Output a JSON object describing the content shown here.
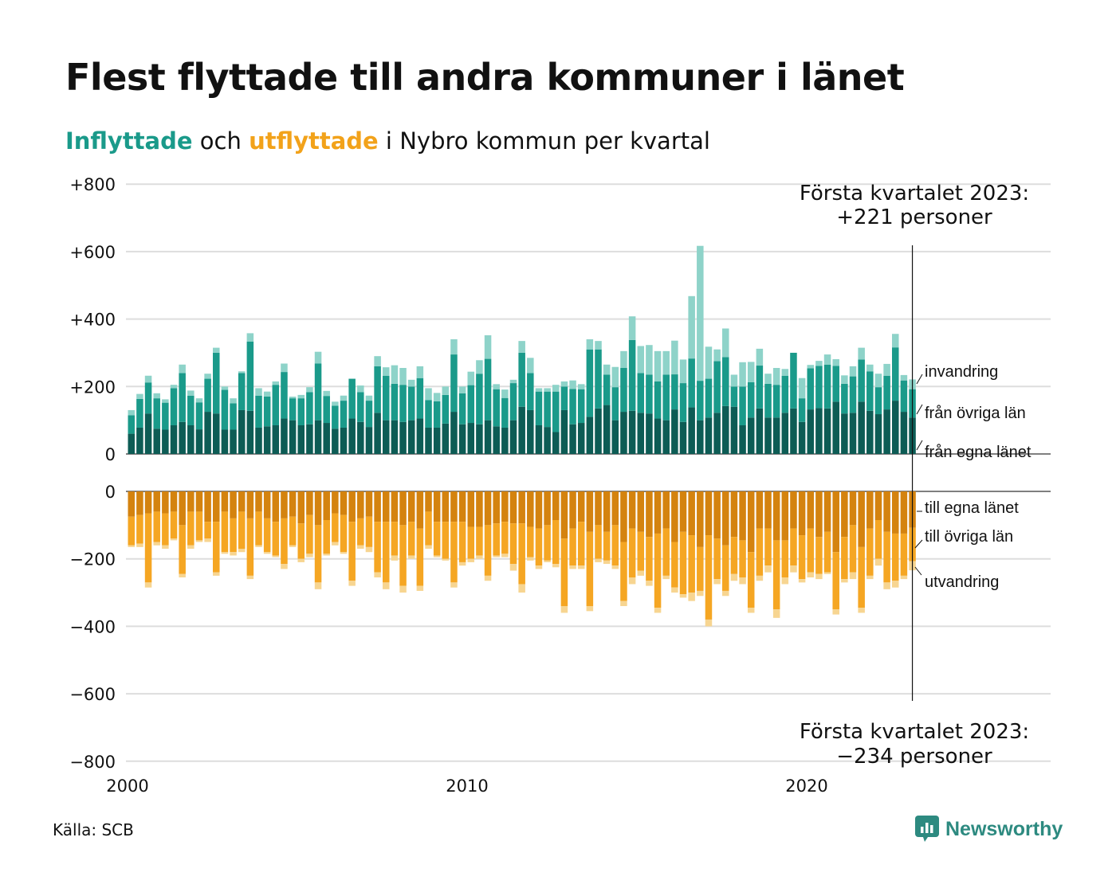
{
  "title": "Flest flyttade till andra kommuner i länet",
  "subtitle": {
    "part1": "Inflyttade",
    "part2": " och ",
    "part3": "utflyttade",
    "part4": " i Nybro kommun per kvartal"
  },
  "source": "Källa: SCB",
  "brand": "Newsworthy",
  "colors": {
    "in_own": "#0d5c55",
    "in_other": "#1a9a8a",
    "in_immig": "#8ed3c9",
    "out_own": "#d4830f",
    "out_other": "#f5a623",
    "out_emig": "#f7d591",
    "subtitle_in": "#1a9a8a",
    "subtitle_out": "#f2a21a",
    "grid": "#dddddd"
  },
  "annotations": {
    "top_line1": "Första kvartalet 2023:",
    "top_line2": "+221 personer",
    "bottom_line1": "Första kvartalet 2023:",
    "bottom_line2": "−234 personer"
  },
  "chart_data": {
    "type": "bar",
    "stacked": true,
    "x_unit": "quarter",
    "x_start": "2000 Q1",
    "x_end": "2023 Q1",
    "xlim": [
      2000,
      2027.25
    ],
    "ylim": [
      -800,
      800
    ],
    "x_ticks": [
      "2000",
      "2010",
      "2020"
    ],
    "x_tick_values": [
      2000,
      2010,
      2020
    ],
    "y_ticks_top": [
      "+800",
      "+600",
      "+400",
      "+200",
      "0"
    ],
    "y_tick_values_top": [
      800,
      600,
      400,
      200,
      0
    ],
    "y_ticks_bottom": [
      "0",
      "−200",
      "−400",
      "−600",
      "−800"
    ],
    "y_tick_values_bottom": [
      0,
      -200,
      -400,
      -600,
      -800
    ],
    "grid": true,
    "series_in": [
      {
        "name": "från egna länet",
        "values": [
          60,
          78,
          120,
          75,
          72,
          85,
          95,
          85,
          73,
          125,
          120,
          72,
          72,
          130,
          128,
          78,
          82,
          85,
          105,
          100,
          85,
          88,
          100,
          92,
          75,
          78,
          105,
          95,
          80,
          122,
          100,
          100,
          95,
          100,
          105,
          78,
          78,
          90,
          125,
          88,
          92,
          88,
          100,
          82,
          78,
          100,
          140,
          130,
          85,
          80,
          65,
          130,
          88,
          92,
          110,
          135,
          145,
          100,
          125,
          128,
          122,
          120,
          105,
          100,
          132,
          95,
          138,
          100,
          108,
          122,
          142,
          140,
          85,
          108,
          135,
          108,
          108,
          122,
          135,
          95,
          132,
          136,
          135,
          155,
          120,
          122,
          155,
          128,
          118,
          132,
          158,
          125,
          108
        ]
      },
      {
        "name": "från övriga län",
        "values": [
          55,
          85,
          92,
          90,
          80,
          110,
          145,
          88,
          80,
          98,
          180,
          118,
          78,
          110,
          205,
          95,
          88,
          120,
          138,
          65,
          80,
          95,
          168,
          80,
          68,
          80,
          118,
          88,
          78,
          138,
          132,
          108,
          110,
          100,
          120,
          82,
          78,
          85,
          170,
          92,
          112,
          150,
          182,
          110,
          88,
          110,
          160,
          110,
          100,
          105,
          120,
          70,
          105,
          100,
          200,
          175,
          90,
          98,
          130,
          210,
          118,
          115,
          110,
          135,
          104,
          115,
          145,
          117,
          115,
          153,
          145,
          60,
          115,
          105,
          127,
          100,
          97,
          110,
          165,
          70,
          122,
          125,
          130,
          106,
          88,
          108,
          125,
          117,
          80,
          100,
          158,
          93,
          84
        ]
      },
      {
        "name": "invandring",
        "values": [
          15,
          15,
          20,
          15,
          10,
          10,
          25,
          15,
          12,
          15,
          15,
          10,
          15,
          5,
          25,
          22,
          15,
          10,
          25,
          5,
          10,
          15,
          35,
          15,
          12,
          15,
          0,
          20,
          15,
          30,
          25,
          55,
          50,
          20,
          35,
          35,
          25,
          25,
          45,
          20,
          40,
          40,
          70,
          15,
          25,
          10,
          35,
          45,
          10,
          10,
          20,
          15,
          25,
          15,
          30,
          25,
          30,
          60,
          50,
          70,
          80,
          88,
          90,
          70,
          100,
          70,
          185,
          400,
          95,
          35,
          85,
          35,
          72,
          60,
          50,
          30,
          50,
          20,
          0,
          60,
          10,
          15,
          30,
          20,
          25,
          30,
          35,
          20,
          40,
          35,
          40,
          16,
          29
        ]
      }
    ],
    "series_out": [
      {
        "name": "till egna länet",
        "values": [
          75,
          70,
          65,
          60,
          65,
          60,
          100,
          60,
          60,
          90,
          90,
          60,
          80,
          60,
          80,
          60,
          80,
          90,
          80,
          75,
          95,
          70,
          100,
          85,
          65,
          70,
          90,
          80,
          75,
          90,
          90,
          90,
          100,
          90,
          110,
          60,
          90,
          90,
          90,
          90,
          105,
          105,
          100,
          95,
          90,
          95,
          95,
          105,
          110,
          100,
          85,
          140,
          110,
          90,
          120,
          100,
          120,
          100,
          150,
          110,
          120,
          135,
          125,
          110,
          150,
          120,
          130,
          165,
          130,
          140,
          160,
          135,
          145,
          180,
          110,
          110,
          145,
          145,
          110,
          130,
          110,
          135,
          120,
          180,
          135,
          100,
          165,
          110,
          85,
          120,
          125,
          125,
          108
        ]
      },
      {
        "name": "till övriga län",
        "values": [
          85,
          85,
          205,
          90,
          95,
          80,
          145,
          100,
          85,
          50,
          150,
          120,
          100,
          110,
          170,
          100,
          100,
          100,
          135,
          85,
          105,
          115,
          170,
          100,
          85,
          110,
          175,
          80,
          90,
          150,
          180,
          100,
          180,
          100,
          170,
          100,
          100,
          110,
          180,
          120,
          95,
          85,
          150,
          95,
          95,
          120,
          180,
          90,
          110,
          105,
          130,
          200,
          110,
          130,
          220,
          100,
          85,
          120,
          175,
          145,
          115,
          130,
          220,
          140,
          135,
          185,
          170,
          130,
          250,
          120,
          135,
          110,
          110,
          165,
          140,
          110,
          205,
          110,
          110,
          130,
          130,
          110,
          120,
          170,
          125,
          140,
          180,
          140,
          115,
          150,
          140,
          125,
          99
        ]
      },
      {
        "name": "utvandring",
        "values": [
          5,
          10,
          15,
          10,
          10,
          5,
          10,
          10,
          5,
          10,
          10,
          5,
          10,
          10,
          10,
          5,
          5,
          5,
          15,
          5,
          10,
          10,
          20,
          5,
          10,
          5,
          15,
          10,
          15,
          15,
          20,
          15,
          20,
          10,
          15,
          10,
          5,
          5,
          15,
          10,
          10,
          10,
          15,
          5,
          10,
          20,
          25,
          10,
          10,
          5,
          10,
          20,
          10,
          10,
          15,
          10,
          10,
          10,
          15,
          20,
          15,
          15,
          15,
          10,
          15,
          10,
          25,
          15,
          20,
          15,
          15,
          20,
          20,
          15,
          15,
          20,
          25,
          20,
          20,
          10,
          15,
          15,
          5,
          15,
          10,
          20,
          15,
          10,
          20,
          20,
          20,
          10,
          27
        ]
      }
    ],
    "series_labels_top": [
      "invandring",
      "från övriga län",
      "från egna länet"
    ],
    "series_labels_bottom": [
      "till egna länet",
      "till övriga län",
      "utvandring"
    ]
  }
}
